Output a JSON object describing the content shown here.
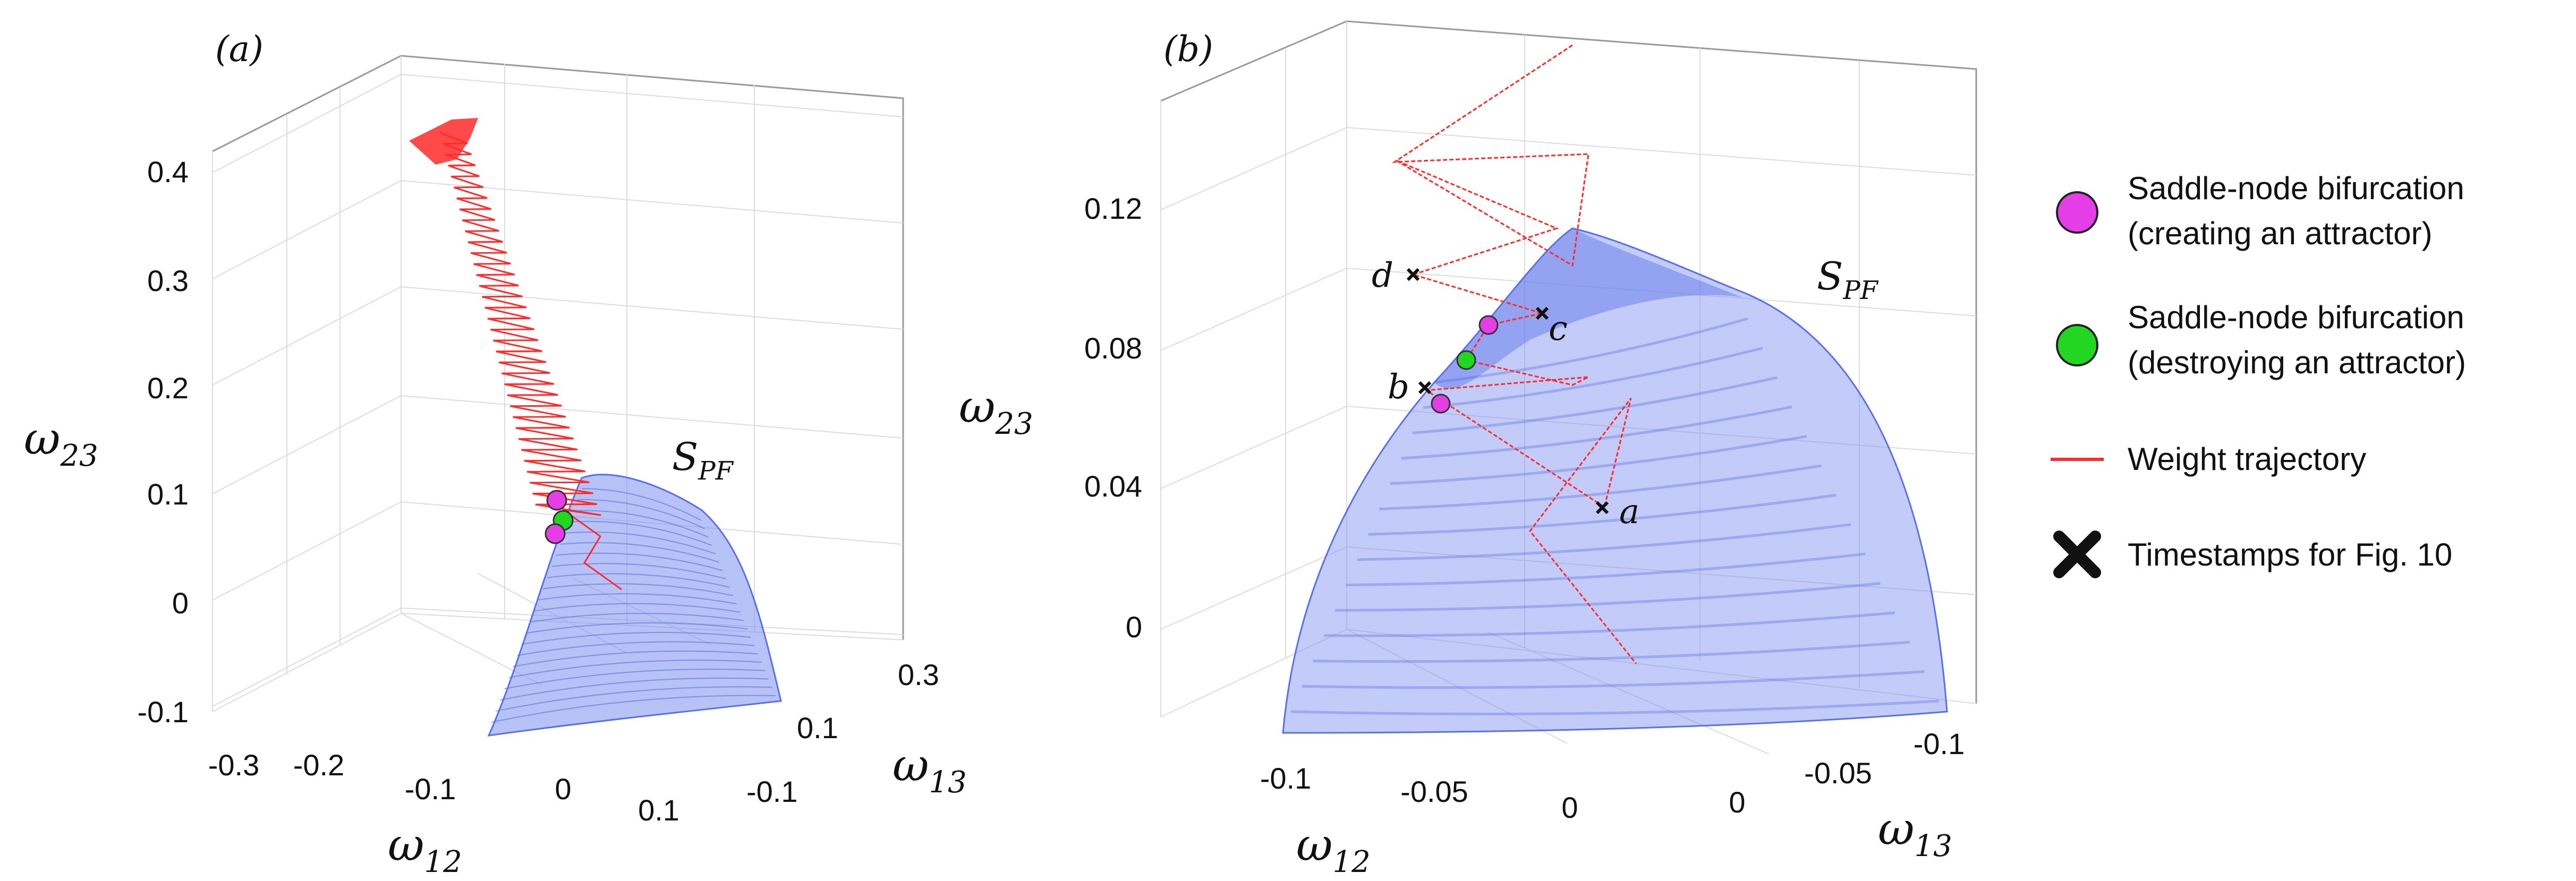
{
  "chart_data": [
    {
      "type": "surface3d",
      "panel_label": "(a)",
      "xlabel": "ω12",
      "ylabel": "ω13",
      "zlabel": "ω23",
      "x_ticks": [
        "-0.3",
        "-0.2",
        "-0.1",
        "0",
        "0.1"
      ],
      "y_ticks": [
        "-0.1",
        "0.1",
        "0.3"
      ],
      "z_ticks": [
        "-0.1",
        "0",
        "0.1",
        "0.2",
        "0.3",
        "0.4"
      ],
      "xlim": [
        -0.35,
        0.15
      ],
      "ylim": [
        -0.15,
        0.35
      ],
      "zlim": [
        -0.12,
        0.42
      ],
      "surface_label": "SPF",
      "series": [
        {
          "name": "Weight trajectory",
          "kind": "trajectory",
          "z_start": 0.4,
          "z_end": 0.03
        },
        {
          "name": "Saddle-node bifurcation (creating an attractor)",
          "kind": "marker",
          "points_z": [
            0.095,
            0.062
          ]
        },
        {
          "name": "Saddle-node bifurcation (destroying an attractor)",
          "kind": "marker",
          "points_z": [
            0.075
          ]
        }
      ]
    },
    {
      "type": "surface3d",
      "panel_label": "(b)",
      "xlabel": "ω12",
      "ylabel": "ω13",
      "zlabel": "ω23",
      "x_ticks": [
        "-0.1",
        "-0.05",
        "0"
      ],
      "y_ticks": [
        "0",
        "-0.05",
        "-0.1"
      ],
      "z_ticks": [
        "0",
        "0.04",
        "0.08",
        "0.12"
      ],
      "xlim": [
        -0.12,
        0.02
      ],
      "ylim": [
        0.02,
        -0.12
      ],
      "zlim": [
        -0.02,
        0.14
      ],
      "surface_label": "SPF",
      "timestamps": [
        "a",
        "b",
        "c",
        "d"
      ],
      "series": [
        {
          "name": "Weight trajectory",
          "kind": "trajectory"
        },
        {
          "name": "Saddle-node bifurcation (creating an attractor)",
          "kind": "marker",
          "points_z": [
            0.085,
            0.063
          ]
        },
        {
          "name": "Saddle-node bifurcation (destroying an attractor)",
          "kind": "marker",
          "points_z": [
            0.074
          ]
        },
        {
          "name": "Timestamps for Fig. 10",
          "kind": "marker"
        }
      ]
    }
  ],
  "legend": {
    "placement": "right",
    "items": [
      {
        "line1": "Saddle-node bifurcation",
        "line2": "(creating an attractor)",
        "color": "#e63ee6",
        "symbol": "circle"
      },
      {
        "line1": "Saddle-node bifurcation",
        "line2": "(destroying an attractor)",
        "color": "#22d622",
        "symbol": "circle"
      },
      {
        "line1": "Weight trajectory",
        "line2": "",
        "color": "#ff2a2a",
        "symbol": "line"
      },
      {
        "line1": "Timestamps for Fig. 10",
        "line2": "",
        "color": "#111111",
        "symbol": "cross"
      }
    ]
  },
  "colors": {
    "trajectory": "#ff2a2a",
    "surface": "#7b8ff0",
    "creating": "#e63ee6",
    "destroying": "#22d622"
  }
}
